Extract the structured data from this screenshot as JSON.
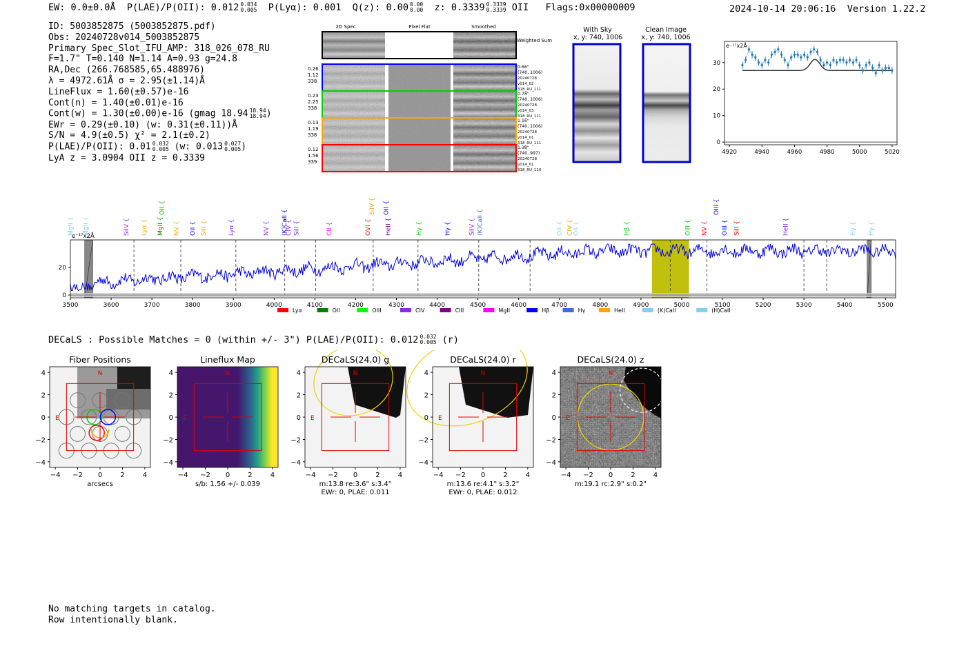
{
  "header": {
    "ew": "EW: 0.0±0.0Å",
    "plae_label": "P(LAE)/P(OII): 0.012",
    "plae_hi": "0.034",
    "plae_lo": "0.005",
    "plya": "P(Lyα): 0.001",
    "qz_label": "Q(z): 0.00",
    "qz_hi": "0.00",
    "qz_lo": "0.00",
    "z_label": "z: 0.3339",
    "z_hi": "0.3339",
    "z_lo": "0.3339",
    "z_line": "OII",
    "flags": "Flags:0x00000009",
    "timestamp": "2024-10-14 20:06:16",
    "version": "Version 1.22.2"
  },
  "info": {
    "id": "ID: 5003852875 (5003852875.pdf)",
    "obs": "Obs: 20240728v014_5003852875",
    "primary": "Primary Spec_Slot_IFU_AMP: 318_026_078_RU",
    "fwhm": "F=1.7\"  T=0.140  N=1.14  A=0.93  g=24.8",
    "radec": "RA,Dec (266.768585,65.488976)",
    "lambda": "λ = 4972.61Å  σ = 2.95(±1.14)Å",
    "lineflux": "LineFlux = 1.60(±0.57)e-16",
    "contn": "Cont(n) = 1.40(±0.01)e-16",
    "contw": "Cont(w) = 1.30(±0.00)e-16 (gmag 18.94",
    "contw_hi": "18.94",
    "contw_lo": "18.94",
    "ewr": "EWr = 0.29(±0.10) (w: 0.31(±0.11))Å",
    "sn": "S/N = 4.9(±0.5)  χ² = 2.1(±0.2)",
    "plae": "P(LAE)/P(OII): 0.01",
    "plae_hi": "0.032",
    "plae_lo": "0.005",
    "plae_w": "(w: 0.013",
    "plae_w_hi": "0.027",
    "plae_w_lo": "0.005",
    "lya": "LyA z = 3.0904  OII z = 0.3339"
  },
  "cutouts": {
    "col_2d": "2D Spec",
    "col_flat": "Pixel Flat",
    "col_smooth": "Smoothed",
    "weighted": "Weighted Sum",
    "rows": [
      {
        "color": "#0000ff",
        "left": [
          "0.26",
          "1.12",
          "338"
        ],
        "right": [
          "0.66\"",
          "(740, 1006)",
          "20240728",
          "v014_02",
          "318_RU_111"
        ]
      },
      {
        "color": "#00d000",
        "left": [
          "0.23",
          "2.25",
          "338"
        ],
        "right": [
          "0.78\"",
          "(740, 1006)",
          "20240728",
          "v014_03",
          "318_RU_111"
        ]
      },
      {
        "color": "#ffa500",
        "left": [
          "0.13",
          "1.19",
          "338"
        ],
        "right": [
          "1.16\"",
          "(740, 1006)",
          "20240728",
          "v014_01",
          "318_RU_111"
        ]
      },
      {
        "color": "#ff0000",
        "left": [
          "0.12",
          "1.56",
          "339"
        ],
        "right": [
          "1.38\"",
          "(740, 997)",
          "20240728",
          "v014_01",
          "318_RU_110"
        ]
      }
    ],
    "with_sky": "With Sky",
    "with_sky_xy": "x, y: 740, 1006",
    "clean": "Clean Image",
    "clean_xy": "x, y: 740, 1006"
  },
  "zoom_chart": {
    "type": "line",
    "unit_label": "e⁻¹⁷x2Å",
    "xlim": [
      4917,
      5023
    ],
    "ylim": [
      -1,
      38
    ],
    "xticks": [
      "4920",
      "4940",
      "4960",
      "4980",
      "5000",
      "5020"
    ],
    "yticks": [
      "0",
      "10",
      "20",
      "30"
    ],
    "data_x": [
      4928,
      4930,
      4932,
      4934,
      4936,
      4938,
      4940,
      4942,
      4944,
      4946,
      4948,
      4950,
      4952,
      4954,
      4956,
      4958,
      4960,
      4962,
      4964,
      4966,
      4968,
      4970,
      4972,
      4974,
      4976,
      4978,
      4980,
      4982,
      4984,
      4986,
      4988,
      4990,
      4992,
      4994,
      4996,
      4998,
      5000,
      5002,
      5004,
      5006,
      5008,
      5010,
      5012,
      5014,
      5016,
      5018,
      5020
    ],
    "data_y": [
      29,
      31,
      35,
      33,
      32,
      30,
      29,
      31,
      30,
      33,
      34,
      35,
      33,
      31,
      29,
      32,
      33,
      33,
      32,
      33,
      32,
      34,
      35,
      34,
      31,
      29,
      30,
      29,
      31,
      30,
      31,
      31,
      30,
      31,
      30,
      31,
      29,
      27,
      29,
      30,
      28,
      26,
      29,
      27,
      28,
      28,
      27
    ],
    "model_baseline": 27,
    "model_peak": 31.2,
    "model_center": 4972.6,
    "model_sigma": 2.95
  },
  "spectrum": {
    "type": "line",
    "unit_label": "e⁻¹⁷x2Å",
    "xlim": [
      3500,
      5525
    ],
    "ylim": [
      -2,
      40
    ],
    "xticks": [
      "3500",
      "3600",
      "3700",
      "3800",
      "3900",
      "4000",
      "4100",
      "4200",
      "4300",
      "4400",
      "4500",
      "4600",
      "4700",
      "4800",
      "4900",
      "5000",
      "5100",
      "5200",
      "5300",
      "5400",
      "5500"
    ],
    "yticks": [
      "0",
      "20"
    ],
    "highlight": [
      4927,
      5018
    ],
    "masked": [
      [
        3535,
        3555
      ],
      [
        5455,
        5465
      ]
    ],
    "dashed_lines": [
      3656,
      3771,
      3906,
      4026,
      4102,
      4243,
      4353,
      4502,
      4628,
      4972,
      5062,
      5300,
      5356
    ],
    "line_labels": [
      {
        "x": 3505,
        "text": "MgII",
        "color": "#87ceeb",
        "row": 0
      },
      {
        "x": 3542,
        "text": "MgII",
        "color": "#87ceeb",
        "row": 0
      },
      {
        "x": 3642,
        "text": "SiIV",
        "color": "#8a2be2",
        "row": 0
      },
      {
        "x": 3685,
        "text": "Lyα",
        "color": "#ffa500",
        "row": 0
      },
      {
        "x": 3725,
        "text": "MgII",
        "color": "#008000",
        "row": 0
      },
      {
        "x": 3729,
        "text": "OII",
        "color": "#00c000",
        "row": 1
      },
      {
        "x": 3765,
        "text": "NV",
        "color": "#ffa500",
        "row": 0
      },
      {
        "x": 3805,
        "text": "OII",
        "color": "#0000ff",
        "row": 0
      },
      {
        "x": 3832,
        "text": "SiII",
        "color": "#ffa500",
        "row": 0
      },
      {
        "x": 3900,
        "text": "Lyα",
        "color": "#8a2be2",
        "row": 0
      },
      {
        "x": 3985,
        "text": "NV",
        "color": "#8a2be2",
        "row": 0
      },
      {
        "x": 4030,
        "text": "(K)CaII",
        "color": "#0000cd",
        "row": 0
      },
      {
        "x": 4060,
        "text": "SiII",
        "color": "#8a2be2",
        "row": 0
      },
      {
        "x": 4040,
        "text": "CIV",
        "color": "#8a2be2",
        "row": 0
      },
      {
        "x": 4140,
        "text": "CII",
        "color": "#ff00ff",
        "row": 0
      },
      {
        "x": 4235,
        "text": "OVI",
        "color": "#ff0000",
        "row": 0
      },
      {
        "x": 4245,
        "text": "SiIV",
        "color": "#ffa500",
        "row": 1
      },
      {
        "x": 4285,
        "text": "HeII",
        "color": "#800080",
        "row": 0
      },
      {
        "x": 4280,
        "text": "OII",
        "color": "#0000ff",
        "row": 1
      },
      {
        "x": 4360,
        "text": "Hγ",
        "color": "#00d000",
        "row": 0
      },
      {
        "x": 4430,
        "text": "Hγ",
        "color": "#0000ff",
        "row": 0
      },
      {
        "x": 4490,
        "text": "SiIV",
        "color": "#8a2be2",
        "row": 0
      },
      {
        "x": 4510,
        "text": "(K)CaII",
        "color": "#4169e1",
        "row": 0
      },
      {
        "x": 4705,
        "text": "OII",
        "color": "#87ceeb",
        "row": 0
      },
      {
        "x": 4730,
        "text": "CIV",
        "color": "#ffa500",
        "row": 0
      },
      {
        "x": 4745,
        "text": "OII",
        "color": "#87ceeb",
        "row": 0
      },
      {
        "x": 4870,
        "text": "Hβ",
        "color": "#00d000",
        "row": 0
      },
      {
        "x": 5020,
        "text": "OIII",
        "color": "#00c000",
        "row": 0
      },
      {
        "x": 5060,
        "text": "NV",
        "color": "#ff0000",
        "row": 0
      },
      {
        "x": 5090,
        "text": "OIII",
        "color": "#0000cd",
        "row": 1
      },
      {
        "x": 5110,
        "text": "OIII",
        "color": "#0000ff",
        "row": 0
      },
      {
        "x": 5140,
        "text": "SiII",
        "color": "#ff0000",
        "row": 0
      },
      {
        "x": 5260,
        "text": "HeII",
        "color": "#8a2be2",
        "row": 0
      },
      {
        "x": 5425,
        "text": "Hγ",
        "color": "#87ceeb",
        "row": 0
      },
      {
        "x": 5470,
        "text": "Hγ",
        "color": "#87ceeb",
        "row": 0
      }
    ],
    "legend": [
      {
        "label": "Lyα",
        "color": "#ff0000"
      },
      {
        "label": "OII",
        "color": "#008000"
      },
      {
        "label": "OIII",
        "color": "#00ff00"
      },
      {
        "label": "CIV",
        "color": "#8a2be2"
      },
      {
        "label": "CIII",
        "color": "#800080"
      },
      {
        "label": "MgII",
        "color": "#ff00ff"
      },
      {
        "label": "Hβ",
        "color": "#0000ff"
      },
      {
        "label": "Hγ",
        "color": "#4169e1"
      },
      {
        "label": "HeII",
        "color": "#ffa500"
      },
      {
        "label": "(K)CaII",
        "color": "#87ceeb"
      },
      {
        "label": "(H)CaII",
        "color": "#87ceeb"
      }
    ]
  },
  "decals": {
    "title": "DECaLS : Possible Matches = 0 (within +/- 3\")  P(LAE)/P(OII): 0.012",
    "plae_hi": "0.032",
    "plae_lo": "0.005",
    "band": "(r)",
    "panels": [
      {
        "title": "Fiber Positions",
        "xlabel": "arcsecs",
        "captions": []
      },
      {
        "title": "Lineflux Map",
        "xlabel": "",
        "captions": [
          "s/b: 1.56 +/- 0.039"
        ]
      },
      {
        "title": "DECaLS(24.0) g",
        "xlabel": "",
        "captions": [
          "m:13.8  re:3.6\"  s:3.4\"",
          "EWr: 0, PLAE: 0.011"
        ]
      },
      {
        "title": "DECaLS(24.0) r",
        "xlabel": "",
        "captions": [
          "m:13.6  re:4.1\"  s:3.2\"",
          "EWr: 0, PLAE: 0.012"
        ]
      },
      {
        "title": "DECaLS(24.0) z",
        "xlabel": "",
        "captions": [
          "m:19.1 rc:2.9\"  s:0.2\""
        ]
      }
    ],
    "ticks": [
      "−4",
      "−2",
      "0",
      "2",
      "4"
    ],
    "north": "N",
    "east": "E"
  },
  "footer": {
    "line1": "No matching targets in catalog.",
    "line2": "Row intentionally blank."
  }
}
